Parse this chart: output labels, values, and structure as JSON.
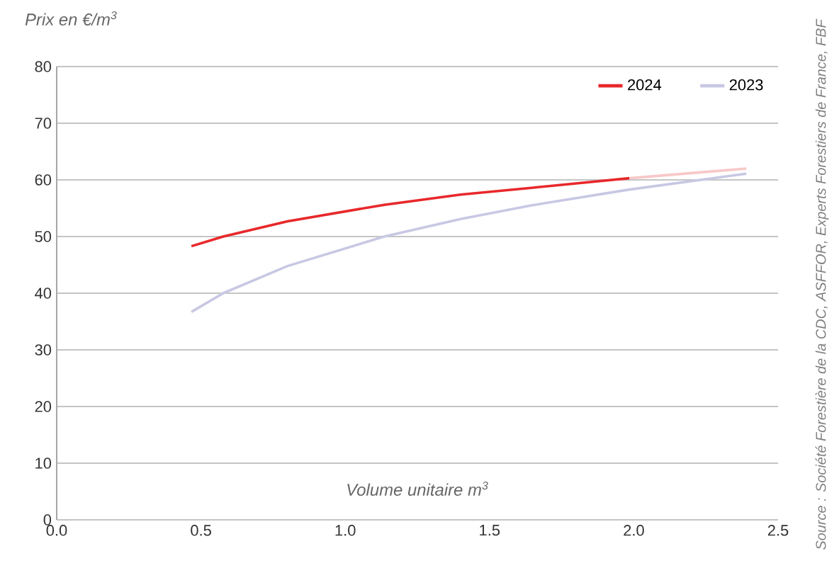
{
  "chart_data": {
    "type": "line",
    "ylabel": "Prix en €/m$^{3}$",
    "xlabel": "Volume unitaire m$^{3}$",
    "annotations": [
      "Source : Société Forestière de la CDC, ASFFOR, Experts Forestiers de France, FBF"
    ],
    "series": [
      {
        "name": "2024",
        "color": "#e8282b",
        "x": [
          0.467,
          0.577,
          0.8,
          1.135,
          1.4,
          1.645,
          1.985
        ],
        "values": [
          48.3,
          50,
          52.7,
          55.6,
          57.4,
          58.6,
          60.3
        ]
      },
      {
        "name": "2023",
        "color": "#c8c8e4",
        "x": [
          0.467,
          0.577,
          0.8,
          1.135,
          1.4,
          1.645,
          1.985,
          2.39
        ],
        "values": [
          36.7,
          40,
          44.8,
          50,
          53.1,
          55.5,
          58.3,
          61.1
        ]
      },
      {
        "color": "#f8c8c8",
        "x": [
          1.985,
          2.2,
          2.39
        ],
        "values": [
          60.3,
          61.2,
          62
        ]
      }
    ],
    "xlim": [
      0,
      2.5
    ],
    "ylim": [
      0,
      80
    ],
    "xticks": [
      {
        "value": 0,
        "label": "0.0"
      },
      {
        "value": 0.5,
        "label": "0.5"
      },
      {
        "value": 1,
        "label": "1.0"
      },
      {
        "value": 1.5,
        "label": "1.5"
      },
      {
        "value": 2,
        "label": "2.0"
      },
      {
        "value": 2.5,
        "label": "2.5"
      }
    ],
    "yticks": [
      0,
      10,
      20,
      30,
      40,
      50,
      60,
      70,
      80
    ],
    "grid": "y",
    "legend": "top right",
    "line_style": "solid",
    "marker": "none"
  }
}
